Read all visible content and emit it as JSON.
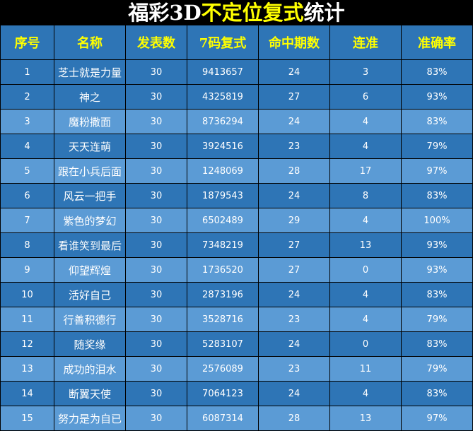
{
  "title": {
    "part1": "福彩3D",
    "part2": "不定位复式",
    "part3": "统计"
  },
  "colors": {
    "header_bg": "#2e75b6",
    "header_text": "#ffff00",
    "row_dark": "#2e75b6",
    "row_light": "#5b9bd5",
    "title_accent": "#ffff00"
  },
  "columns": [
    "序号",
    "名称",
    "发表数",
    "7码复式",
    "命中期数",
    "连准",
    "准确率"
  ],
  "rows": [
    [
      "1",
      "芝士就是力量",
      "30",
      "9413657",
      "24",
      "3",
      "83%"
    ],
    [
      "2",
      "神之",
      "30",
      "4325819",
      "27",
      "6",
      "93%"
    ],
    [
      "3",
      "魔粉撒面",
      "30",
      "8736294",
      "24",
      "4",
      "83%"
    ],
    [
      "4",
      "天天连萌",
      "30",
      "3924516",
      "23",
      "4",
      "79%"
    ],
    [
      "5",
      "跟在小兵后面",
      "30",
      "1248069",
      "28",
      "17",
      "97%"
    ],
    [
      "6",
      "风云一把手",
      "30",
      "1879543",
      "24",
      "8",
      "83%"
    ],
    [
      "7",
      "紫色的梦幻",
      "30",
      "6502489",
      "29",
      "4",
      "100%"
    ],
    [
      "8",
      "看谁笑到最后",
      "30",
      "7348219",
      "27",
      "13",
      "93%"
    ],
    [
      "9",
      "仰望辉煌",
      "30",
      "1736520",
      "27",
      "0",
      "93%"
    ],
    [
      "10",
      "活好自己",
      "30",
      "2873196",
      "24",
      "4",
      "83%"
    ],
    [
      "11",
      "行善积德行",
      "30",
      "3528716",
      "23",
      "4",
      "79%"
    ],
    [
      "12",
      "随奖缘",
      "30",
      "5283107",
      "24",
      "0",
      "83%"
    ],
    [
      "13",
      "成功的泪水",
      "30",
      "2576089",
      "23",
      "11",
      "79%"
    ],
    [
      "14",
      "断翼天使",
      "30",
      "7064123",
      "24",
      "4",
      "83%"
    ],
    [
      "15",
      "努力是为自已",
      "30",
      "6087314",
      "28",
      "13",
      "97%"
    ]
  ]
}
